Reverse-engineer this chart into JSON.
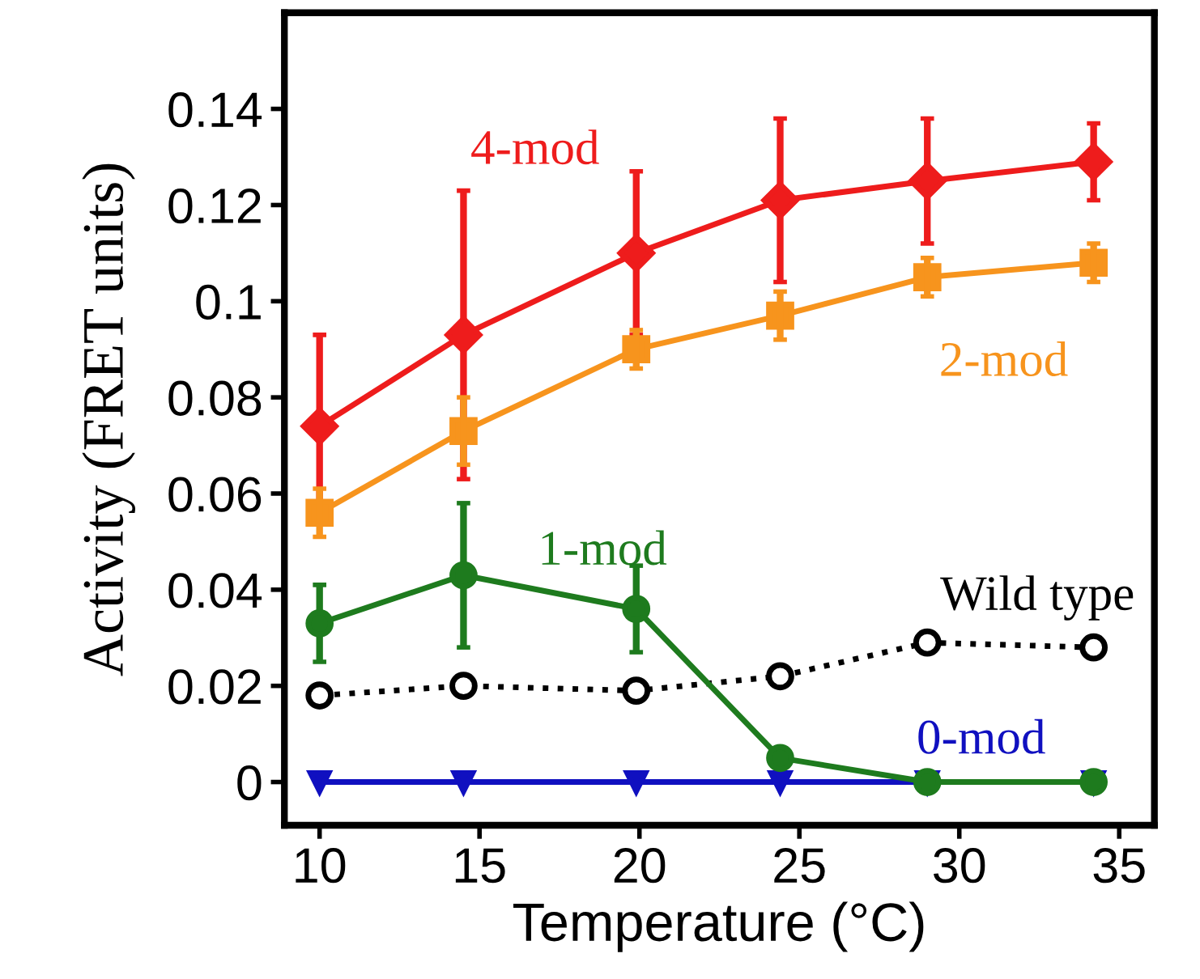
{
  "chart_data": {
    "type": "line",
    "xlabel": "Temperature (°C)",
    "ylabel": "Activity (FRET units)",
    "xlim": [
      8.9,
      36.1
    ],
    "ylim": [
      -0.009,
      0.16
    ],
    "xticks": [
      10,
      15,
      20,
      25,
      30,
      35
    ],
    "yticks": [
      0,
      0.02,
      0.04,
      0.06,
      0.08,
      0.1,
      0.12,
      0.14
    ],
    "grid": false,
    "x": [
      10,
      14.5,
      19.9,
      24.4,
      29.0,
      34.2
    ],
    "series": [
      {
        "name": "4-mod",
        "color": "#ee1c1c",
        "marker": "diamond",
        "line_style": "solid",
        "values": [
          0.074,
          0.093,
          0.11,
          0.121,
          0.125,
          0.129
        ],
        "errors": [
          0.019,
          0.03,
          0.017,
          0.017,
          0.013,
          0.008
        ]
      },
      {
        "name": "2-mod",
        "color": "#f7941d",
        "marker": "square",
        "line_style": "solid",
        "values": [
          0.056,
          0.073,
          0.09,
          0.097,
          0.105,
          0.108
        ],
        "errors": [
          0.005,
          0.007,
          0.004,
          0.005,
          0.004,
          0.004
        ]
      },
      {
        "name": "1-mod",
        "color": "#1e7b1e",
        "marker": "circle",
        "line_style": "solid",
        "values": [
          0.033,
          0.043,
          0.036,
          0.005,
          0,
          0
        ],
        "errors": [
          0.008,
          0.015,
          0.009,
          null,
          null,
          null
        ]
      },
      {
        "name": "Wild type",
        "color": "#000000",
        "marker": "circle",
        "line_style": "dotted",
        "values": [
          0.018,
          0.02,
          0.019,
          0.022,
          0.029,
          0.028
        ]
      },
      {
        "name": "0-mod",
        "color": "#1010c0",
        "marker": "triangle",
        "line_style": "solid",
        "values": [
          0,
          0,
          0,
          0,
          0,
          0
        ]
      }
    ]
  }
}
